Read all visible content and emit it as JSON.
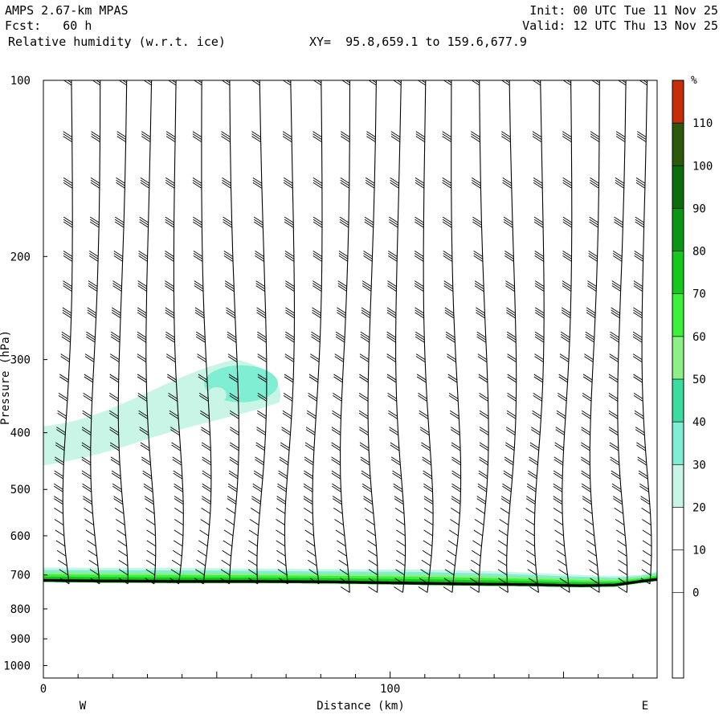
{
  "header": {
    "model": "AMPS 2.67-km MPAS",
    "fcst": "Fcst:   60 h",
    "field": "Relative humidity (w.r.t. ice)",
    "xy": "XY=  95.8,659.1 to 159.6,677.9",
    "init": "Init: 00 UTC Tue 11 Nov 25",
    "valid": "Valid: 12 UTC Thu 13 Nov 25"
  },
  "chart_data": {
    "type": "heatmap",
    "title": "Relative humidity (w.r.t. ice)",
    "xlabel": "Distance (km)",
    "ylabel": "Pressure (hPa)",
    "x_ticks": [
      0,
      100
    ],
    "y_ticks": [
      100,
      200,
      300,
      400,
      500,
      600,
      700,
      800,
      900,
      1000
    ],
    "xlim": [
      0,
      177
    ],
    "ylim": [
      1050,
      100
    ],
    "y_scale": "log-pressure (inverted)",
    "left_label": "W",
    "right_label": "E",
    "colorbar": {
      "unit": "%",
      "levels": [
        0,
        10,
        20,
        30,
        40,
        50,
        60,
        70,
        80,
        90,
        100,
        110
      ],
      "colors": [
        "#ffffff",
        "#ffffff",
        "#ffffff",
        "#ffffff",
        "#c8f5e6",
        "#80eed2",
        "#3cdca0",
        "#8cf088",
        "#3cf03c",
        "#14c81e",
        "#0a9614",
        "#0a6e0a",
        "#2d5a0a",
        "#c82d0a"
      ]
    },
    "terrain_pressure": [
      {
        "x": 0,
        "p": 715
      },
      {
        "x": 20,
        "p": 717
      },
      {
        "x": 40,
        "p": 718
      },
      {
        "x": 60,
        "p": 718
      },
      {
        "x": 80,
        "p": 719
      },
      {
        "x": 100,
        "p": 722
      },
      {
        "x": 120,
        "p": 725
      },
      {
        "x": 140,
        "p": 727
      },
      {
        "x": 155,
        "p": 730
      },
      {
        "x": 165,
        "p": 728
      },
      {
        "x": 172,
        "p": 718
      },
      {
        "x": 177,
        "p": 712
      }
    ],
    "moist_layer": {
      "top_pressure": [
        {
          "x": 0,
          "p": 680
        },
        {
          "x": 40,
          "p": 681
        },
        {
          "x": 80,
          "p": 684
        },
        {
          "x": 110,
          "p": 685
        },
        {
          "x": 130,
          "p": 690
        },
        {
          "x": 150,
          "p": 698
        },
        {
          "x": 165,
          "p": 703
        },
        {
          "x": 172,
          "p": 700
        },
        {
          "x": 177,
          "p": 690
        }
      ],
      "max_rh": 100
    },
    "upper_moist_layer": {
      "shape": "elongated band, thickest near x≈55",
      "extent_x": [
        0,
        70
      ],
      "outer_rh": 30,
      "inner_rh": 40,
      "pressure_range": [
        300,
        450
      ]
    },
    "wind_barb_columns_x": [
      7,
      15,
      23,
      31,
      39,
      47,
      55,
      63,
      71,
      79,
      87,
      95,
      103,
      111,
      119,
      127,
      135,
      143,
      151,
      159,
      167,
      174
    ],
    "wind_barb_levels_hPa_range": [
      100,
      750
    ]
  }
}
